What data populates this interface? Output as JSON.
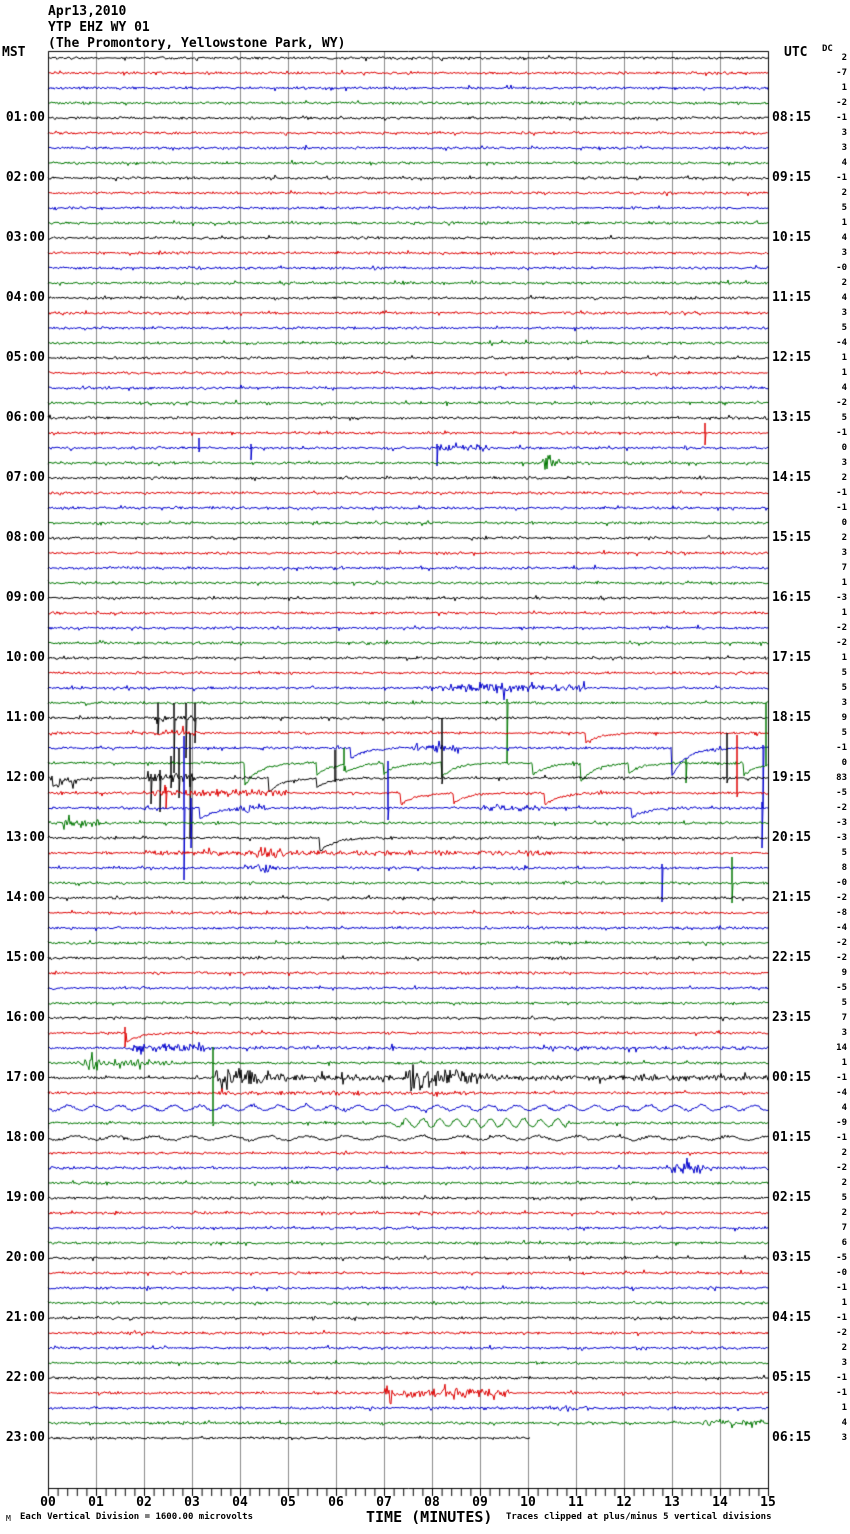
{
  "header": {
    "date": "Apr13,2010",
    "station": "YTP EHZ WY 01",
    "location": "(The Promontory, Yellowstone Park, WY)",
    "left_tz": "MST",
    "right_tz": "UTC",
    "dc_label": "DC"
  },
  "footer": {
    "watermark": "M",
    "scale_note": "Each Vertical Division = 1600.00 microvolts",
    "time_axis_label": "TIME (MINUTES)",
    "clip_note": "Traces clipped at plus/minus 5 vertical divisions"
  },
  "chart_data": {
    "type": "line",
    "subtype": "helicorder",
    "title": "YTP EHZ WY 01 (The Promontory, Yellowstone Park, WY) Apr13,2010",
    "xlabel": "TIME (MINUTES)",
    "x_range": [
      0,
      15
    ],
    "x_ticks": [
      "00",
      "01",
      "02",
      "03",
      "04",
      "05",
      "06",
      "07",
      "08",
      "09",
      "10",
      "11",
      "12",
      "13",
      "14",
      "15"
    ],
    "x_minor_per_major": 5,
    "minutes_per_line": 15,
    "rows": 93,
    "row_colors_cycle": [
      "#000000",
      "#dd0000",
      "#0000cc",
      "#007700"
    ],
    "grid_color": "#8a8a8a",
    "frame_color": "#000000",
    "left_times": [
      "01:00",
      "02:00",
      "03:00",
      "04:00",
      "05:00",
      "06:00",
      "07:00",
      "08:00",
      "09:00",
      "10:00",
      "11:00",
      "12:00",
      "13:00",
      "14:00",
      "15:00",
      "16:00",
      "17:00",
      "18:00",
      "19:00",
      "20:00",
      "21:00",
      "22:00",
      "23:00"
    ],
    "right_times": [
      "08:15",
      "09:15",
      "10:15",
      "11:15",
      "12:15",
      "13:15",
      "14:15",
      "15:15",
      "16:15",
      "17:15",
      "18:15",
      "19:15",
      "20:15",
      "21:15",
      "22:15",
      "23:15",
      "00:15",
      "01:15",
      "02:15",
      "03:15",
      "04:15",
      "05:15",
      "06:15"
    ],
    "dc_offsets": [
      "2",
      "-7",
      "1",
      "-2",
      "-1",
      "3",
      "3",
      "4",
      "-1",
      "2",
      "5",
      "1",
      "4",
      "3",
      "-0",
      "2",
      "4",
      "3",
      "5",
      "-4",
      "1",
      "1",
      "4",
      "-2",
      "5",
      "-1",
      "0",
      "3",
      "2",
      "-1",
      "-1",
      "0",
      "2",
      "3",
      "7",
      "1",
      "-3",
      "1",
      "-2",
      "-2",
      "1",
      "5",
      "5",
      "3",
      "9",
      "5",
      "-1",
      "0",
      "83",
      "-5",
      "-2",
      "-3",
      "-3",
      "5",
      "8",
      "-0",
      "-2",
      "-8",
      "-4",
      "-2",
      "-2",
      "9",
      "-5",
      "5",
      "7",
      "3",
      "14",
      "1",
      "-1",
      "-4",
      "4",
      "-9",
      "-1",
      "2",
      "-2",
      "2",
      "5",
      "2",
      "7",
      "6",
      "-5",
      "-0",
      "-1",
      "1",
      "-1",
      "-2",
      "2",
      "3",
      "-1",
      "-1",
      "1",
      "4",
      "3"
    ],
    "trace_end": {
      "row": 92,
      "minute": 10.04
    },
    "events": [
      {
        "t": "spike",
        "r": 25,
        "m": 13.69,
        "u": 10,
        "d": 12
      },
      {
        "t": "spike",
        "r": 26,
        "m": 3.15,
        "u": 10,
        "d": 4
      },
      {
        "t": "spike",
        "r": 26,
        "m": 4.23,
        "u": 4,
        "d": 12
      },
      {
        "t": "spike",
        "r": 26,
        "m": 8.1,
        "u": 4,
        "d": 18
      },
      {
        "t": "burst",
        "r": 26,
        "m0": 8.05,
        "m1": 9.2,
        "a": 4
      },
      {
        "t": "burst",
        "r": 27,
        "m0": 10.3,
        "m1": 10.65,
        "a": 9
      },
      {
        "t": "burst",
        "r": 42,
        "m0": 8.1,
        "m1": 11.2,
        "a": 4.5
      },
      {
        "t": "burst",
        "r": 42,
        "m0": 9.0,
        "m1": 9.6,
        "a": 8
      },
      {
        "t": "spike",
        "r": 43,
        "m": 9.56,
        "u": 4,
        "d": 60
      },
      {
        "t": "burst",
        "r": 44,
        "m0": 2.2,
        "m1": 3.1,
        "a": 4
      },
      {
        "t": "spike",
        "r": 44,
        "m": 2.29,
        "u": 15,
        "d": 16
      },
      {
        "t": "spike",
        "r": 44,
        "m": 2.63,
        "u": 15,
        "d": 55
      },
      {
        "t": "spike",
        "r": 44,
        "m": 2.87,
        "u": 15,
        "d": 40
      },
      {
        "t": "spike",
        "r": 44,
        "m": 3.06,
        "u": 15,
        "d": 25
      },
      {
        "t": "burst",
        "r": 45,
        "m0": 2.2,
        "m1": 3.1,
        "a": 4
      },
      {
        "t": "dip",
        "r": 45,
        "m": 11.2,
        "d": 10
      },
      {
        "t": "dip",
        "r": 46,
        "m": 6.3,
        "d": 11
      },
      {
        "t": "burst",
        "r": 46,
        "m0": 7.6,
        "m1": 8.6,
        "a": 4
      },
      {
        "t": "dip",
        "r": 46,
        "m": 13.0,
        "d": 28
      },
      {
        "t": "spike",
        "r": 46,
        "m": 14.9,
        "u": 3,
        "d": 60
      },
      {
        "t": "dip",
        "r": 47,
        "m": 4.1,
        "d": 22
      },
      {
        "t": "dip",
        "r": 47,
        "m": 5.6,
        "d": 12
      },
      {
        "t": "spike",
        "r": 47,
        "m": 6.17,
        "u": 15,
        "d": 8
      },
      {
        "t": "dip",
        "r": 47,
        "m": 6.2,
        "d": 8
      },
      {
        "t": "dip",
        "r": 47,
        "m": 7.0,
        "d": 10
      },
      {
        "t": "dip",
        "r": 47,
        "m": 8.2,
        "d": 14
      },
      {
        "t": "dip",
        "r": 47,
        "m": 10.1,
        "d": 12
      },
      {
        "t": "dip",
        "r": 47,
        "m": 11.1,
        "d": 18
      },
      {
        "t": "dip",
        "r": 47,
        "m": 12.1,
        "d": 10
      },
      {
        "t": "spike",
        "r": 47,
        "m": 13.3,
        "u": 4,
        "d": 20
      },
      {
        "t": "dip",
        "r": 47,
        "m": 14.5,
        "d": 12
      },
      {
        "t": "spike",
        "r": 47,
        "m": 14.96,
        "u": 60,
        "d": 3
      },
      {
        "t": "burst",
        "r": 48,
        "m0": 0.0,
        "m1": 0.6,
        "a": 5
      },
      {
        "t": "dip",
        "r": 48,
        "m": 0.1,
        "d": 9
      },
      {
        "t": "burst",
        "r": 48,
        "m0": 2.0,
        "m1": 3.1,
        "a": 5
      },
      {
        "t": "spike",
        "r": 48,
        "m": 2.15,
        "u": 4,
        "d": 26
      },
      {
        "t": "spike",
        "r": 48,
        "m": 2.33,
        "u": 8,
        "d": 34
      },
      {
        "t": "spike",
        "r": 48,
        "m": 2.57,
        "u": 22,
        "d": 10
      },
      {
        "t": "spike",
        "r": 48,
        "m": 2.72,
        "u": 30,
        "d": 20
      },
      {
        "t": "spike",
        "r": 48,
        "m": 2.95,
        "u": 45,
        "d": 60
      },
      {
        "t": "dip",
        "r": 48,
        "m": 4.6,
        "d": 14
      },
      {
        "t": "dip",
        "r": 48,
        "m": 5.6,
        "d": 9
      },
      {
        "t": "spike",
        "r": 48,
        "m": 5.98,
        "u": 28,
        "d": 4
      },
      {
        "t": "spike",
        "r": 48,
        "m": 8.2,
        "u": 60,
        "d": 6
      },
      {
        "t": "spike",
        "r": 48,
        "m": 14.15,
        "u": 45,
        "d": 5
      },
      {
        "t": "burst",
        "r": 49,
        "m0": 2.0,
        "m1": 5.0,
        "a": 4
      },
      {
        "t": "spike",
        "r": 49,
        "m": 2.45,
        "u": 6,
        "d": 16
      },
      {
        "t": "dip",
        "r": 49,
        "m": 7.35,
        "d": 12
      },
      {
        "t": "dip",
        "r": 49,
        "m": 8.45,
        "d": 10
      },
      {
        "t": "dip",
        "r": 49,
        "m": 10.35,
        "d": 12
      },
      {
        "t": "spike",
        "r": 49,
        "m": 14.35,
        "u": 58,
        "d": 4
      },
      {
        "t": "spike",
        "r": 50,
        "m": 2.83,
        "u": 72,
        "d": 72
      },
      {
        "t": "spike",
        "r": 50,
        "m": 2.97,
        "u": 10,
        "d": 40
      },
      {
        "t": "dip",
        "r": 50,
        "m": 3.15,
        "d": 12
      },
      {
        "t": "burst",
        "r": 50,
        "m0": 3.9,
        "m1": 4.6,
        "a": 5
      },
      {
        "t": "spike",
        "r": 50,
        "m": 7.08,
        "u": 47,
        "d": 12
      },
      {
        "t": "burst",
        "r": 50,
        "m0": 9.0,
        "m1": 10.2,
        "a": 4
      },
      {
        "t": "dip",
        "r": 50,
        "m": 12.15,
        "d": 10
      },
      {
        "t": "spike",
        "r": 50,
        "m": 14.88,
        "u": 6,
        "d": 40
      },
      {
        "t": "burst",
        "r": 51,
        "m0": 0.3,
        "m1": 1.1,
        "a": 5
      },
      {
        "t": "dip",
        "r": 52,
        "m": 5.66,
        "d": 13
      },
      {
        "t": "burst",
        "r": 53,
        "m0": 2.0,
        "m1": 10.5,
        "a": 3
      },
      {
        "t": "burst",
        "r": 53,
        "m0": 4.3,
        "m1": 4.95,
        "a": 7
      },
      {
        "t": "burst",
        "r": 54,
        "m0": 4.1,
        "m1": 4.7,
        "a": 5
      },
      {
        "t": "spike",
        "r": 54,
        "m": 12.8,
        "u": 4,
        "d": 34
      },
      {
        "t": "spike",
        "r": 55,
        "m": 14.25,
        "u": 26,
        "d": 20
      },
      {
        "t": "spike",
        "r": 65,
        "m": 1.6,
        "u": 6,
        "d": 14
      },
      {
        "t": "dip",
        "r": 65,
        "m": 1.63,
        "d": 9
      },
      {
        "t": "burst",
        "r": 66,
        "m0": 1.7,
        "m1": 3.3,
        "a": 5
      },
      {
        "t": "burst",
        "r": 66,
        "m0": 3.3,
        "m1": 15,
        "a": 2
      },
      {
        "t": "burst",
        "r": 67,
        "m0": 0.6,
        "m1": 2.6,
        "a": 4
      },
      {
        "t": "burst",
        "r": 67,
        "m0": 0.8,
        "m1": 1.1,
        "a": 8
      },
      {
        "t": "quake",
        "r": 68,
        "m": 3.4,
        "p": 20,
        "dur": 2.6
      },
      {
        "t": "quake",
        "r": 68,
        "m": 7.45,
        "p": 18,
        "dur": 3.4
      },
      {
        "t": "burst",
        "r": 68,
        "m0": 3.4,
        "m1": 15,
        "a": 3.5
      },
      {
        "t": "burst",
        "r": 69,
        "m0": 3.4,
        "m1": 9.0,
        "a": 2.5
      },
      {
        "t": "wavy",
        "r": 70,
        "m0": 0,
        "m1": 15,
        "a": 2.5,
        "p": 0.55
      },
      {
        "t": "spike",
        "r": 71,
        "m": 3.44,
        "u": 76,
        "d": 3
      },
      {
        "t": "wavy",
        "r": 71,
        "m0": 7.2,
        "m1": 10.8,
        "a": 4,
        "p": 0.35
      },
      {
        "t": "wavy",
        "r": 72,
        "m0": 0,
        "m1": 15,
        "a": 2,
        "p": 0.8
      },
      {
        "t": "burst",
        "r": 74,
        "m0": 13.0,
        "m1": 13.65,
        "a": 7
      },
      {
        "t": "burst",
        "r": 89,
        "m0": 7.0,
        "m1": 9.6,
        "a": 5.5
      },
      {
        "t": "burst",
        "r": 90,
        "m0": 10.3,
        "m1": 11.3,
        "a": 3
      },
      {
        "t": "burst",
        "r": 91,
        "m0": 13.6,
        "m1": 14.9,
        "a": 3.5
      }
    ]
  }
}
